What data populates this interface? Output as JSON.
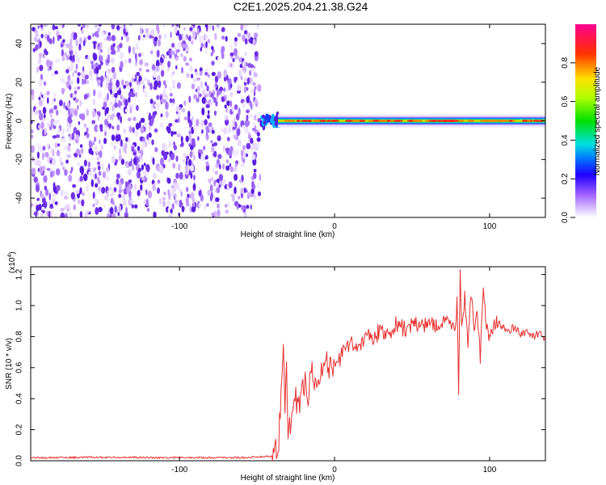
{
  "page": {
    "title": "C2E1.2025.204.21.38.G24"
  },
  "chart_data": [
    {
      "type": "heatmap",
      "xlabel": "Height of straight line (km)",
      "ylabel": "Frequency (Hz)",
      "xlim": [
        -196,
        136
      ],
      "ylim": [
        -50,
        50
      ],
      "xticks": [
        -100,
        0,
        100
      ],
      "xtick_labels": [
        "-100",
        "0",
        "100"
      ],
      "yticks": [
        -40,
        -20,
        0,
        20,
        40
      ],
      "ytick_labels": [
        "-40",
        "-20",
        "0",
        "20",
        "40"
      ],
      "noise_region_x": [
        -196,
        -48
      ],
      "signal_region_x": [
        -48,
        136
      ],
      "signal_center_hz": 0,
      "colorbar": {
        "label": "Normalized spectral amplitude",
        "range": [
          0,
          1
        ],
        "ticks": [
          0,
          0.2,
          0.4,
          0.6,
          0.8
        ],
        "tick_labels": [
          "0.0",
          "0.2",
          "0.4",
          "0.6",
          "0.8"
        ]
      }
    },
    {
      "type": "line",
      "xlabel": "Height of straight line (km)",
      "ylabel": "SNR (10 * v/v)",
      "y_multiplier_label": "(x10",
      "y_multiplier_exp": "4",
      "xlim": [
        -196,
        136
      ],
      "ylim": [
        0,
        1.25
      ],
      "xticks": [
        -100,
        0,
        100
      ],
      "xtick_labels": [
        "-100",
        "0",
        "100"
      ],
      "yticks": [
        0,
        0.2,
        0.4,
        0.6,
        0.8,
        1.0,
        1.2
      ],
      "ytick_labels": [
        "0.0",
        "0.2",
        "0.4",
        "0.6",
        "0.8",
        "1.0",
        "1.2"
      ],
      "series": [
        {
          "color": "#e83030",
          "x": [
            -196,
            -150,
            -100,
            -60,
            -40,
            -36,
            -34,
            -33,
            -32,
            -31,
            -30,
            -28,
            -25,
            -22,
            -20,
            -17,
            -15,
            -12,
            -10,
            -8,
            -5,
            -2,
            0,
            5,
            10,
            15,
            20,
            25,
            30,
            35,
            40,
            45,
            50,
            55,
            60,
            65,
            70,
            75,
            78,
            79,
            80,
            81,
            82,
            84,
            86,
            88,
            90,
            92,
            94,
            96,
            98,
            100,
            104,
            108,
            112,
            116,
            120,
            124,
            128,
            132,
            136
          ],
          "y": [
            0.02,
            0.022,
            0.02,
            0.02,
            0.03,
            0.12,
            0.6,
            0.82,
            0.3,
            0.62,
            0.16,
            0.26,
            0.4,
            0.35,
            0.52,
            0.44,
            0.6,
            0.5,
            0.58,
            0.55,
            0.62,
            0.57,
            0.62,
            0.68,
            0.75,
            0.72,
            0.82,
            0.78,
            0.85,
            0.82,
            0.88,
            0.85,
            0.88,
            0.86,
            0.9,
            0.87,
            0.88,
            0.9,
            0.85,
            1.05,
            0.42,
            1.25,
            0.9,
            1.05,
            0.75,
            1.1,
            0.82,
            1.0,
            0.65,
            1.1,
            0.88,
            0.8,
            0.9,
            0.86,
            0.84,
            0.86,
            0.82,
            0.83,
            0.8,
            0.82,
            0.79
          ]
        }
      ]
    }
  ]
}
